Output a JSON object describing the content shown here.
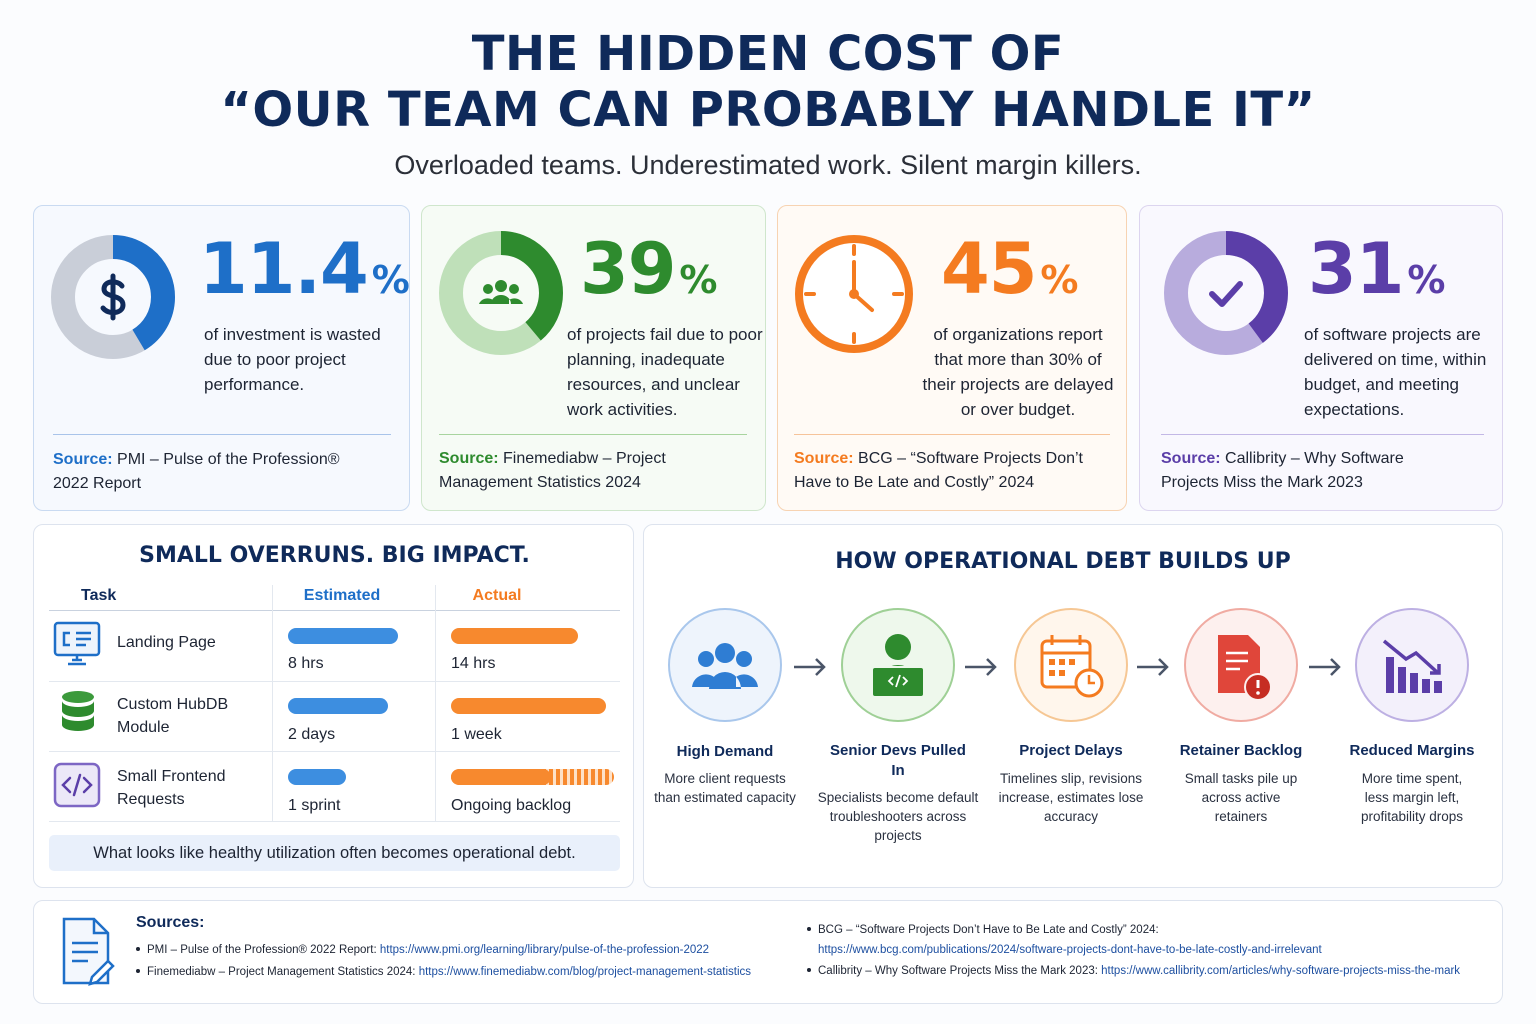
{
  "header": {
    "title_line1": "THE HIDDEN COST OF",
    "title_line2": "“OUR TEAM CAN PROBABLY HANDLE IT”",
    "subtitle": "Overloaded teams. Underestimated work. Silent margin killers."
  },
  "stats": [
    {
      "value": 11.4,
      "unit": "%",
      "text": "of investment is wasted due to poor project performance.",
      "source_label": "Source:",
      "source": "PMI – Pulse of the Profession® 2022 Report"
    },
    {
      "value": 39,
      "unit": "%",
      "text": "of projects fail due to poor planning, inadequate resources, and unclear work activities.",
      "source_label": "Source:",
      "source": "Finemediabw – Project Management Statistics 2024"
    },
    {
      "value": 45,
      "unit": "%",
      "text": "of organizations report that more than 30% of their projects are delayed or over budget.",
      "source_label": "Source:",
      "source": "BCG – “Software Projects Don’t Have to Be Late and Costly” 2024"
    },
    {
      "value": 31,
      "unit": "%",
      "text": "of software projects are delivered on time, within budget, and meeting expectations.",
      "source_label": "Source:",
      "source": "Callibrity – Why Software Projects Miss the Mark 2023"
    }
  ],
  "overruns": {
    "title": "SMALL OVERRUNS. BIG IMPACT.",
    "columns": [
      "Task",
      "Estimated",
      "Actual"
    ],
    "rows": [
      [
        "Landing Page",
        "8 hrs",
        "14 hrs"
      ],
      [
        "Custom HubDB Module",
        "2 days",
        "1 week"
      ],
      [
        "Small Frontend Requests",
        "1 sprint",
        "Ongoing backlog"
      ]
    ],
    "note": "What looks like healthy utilization often becomes operational debt."
  },
  "debt": {
    "title": "HOW OPERATIONAL DEBT BUILDS UP",
    "steps": [
      {
        "title": "High Demand",
        "text": "More client requests than estimated capacity"
      },
      {
        "title": "Senior Devs Pulled In",
        "text": "Specialists become default troubleshooters across projects"
      },
      {
        "title": "Project Delays",
        "text": "Timelines slip, revisions increase, estimates lose accuracy"
      },
      {
        "title": "Retainer Backlog",
        "text": "Small tasks pile up across active retainers"
      },
      {
        "title": "Reduced Margins",
        "text": "More time spent, less margin left, profitability drops"
      }
    ]
  },
  "sources": {
    "title": "Sources:",
    "items": [
      {
        "label": "PMI – Pulse of the Profession® 2022 Report:",
        "url": "https://www.pmi.org/learning/library/pulse-of-the-profession-2022"
      },
      {
        "label": "Finemediabw – Project Management Statistics 2024:",
        "url": "https://www.finemediabw.com/blog/project-management-statistics"
      },
      {
        "label": "BCG – “Software Projects Don’t Have to Be Late and Costly” 2024:",
        "url": "https://www.bcg.com/publications/2024/software-projects-dont-have-to-be-late-costly-and-irrelevant"
      },
      {
        "label": "Callibrity – Why Software Projects Miss the Mark 2023:",
        "url": "https://www.callibrity.com/articles/why-software-projects-miss-the-mark"
      }
    ]
  }
}
